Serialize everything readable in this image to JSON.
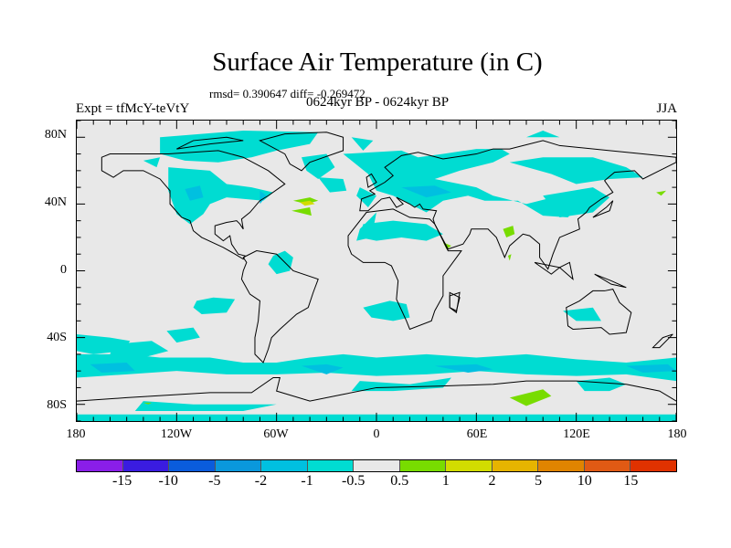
{
  "title": "Surface Air Temperature (in C)",
  "stats": "rmsd= 0.390647 diff= -0.269472",
  "period": "0624kyr BP - 0624kyr BP",
  "experiment": "Expt = tfMcY-teVtY",
  "season": "JJA",
  "lat_labels": [
    "80N",
    "40N",
    "0",
    "40S",
    "80S"
  ],
  "lon_labels": [
    "180",
    "120W",
    "60W",
    "0",
    "60E",
    "120E",
    "180"
  ],
  "colorbar": {
    "colors": [
      "#8a1ee8",
      "#3a1ce0",
      "#0a5cdc",
      "#0a98dc",
      "#00c0e0",
      "#00dcd2",
      "#e8e8e8",
      "#78dc00",
      "#d2dc00",
      "#e6b400",
      "#e08400",
      "#e05a14",
      "#e03200"
    ],
    "labels": [
      "-15",
      "-10",
      "-5",
      "-2",
      "-1",
      "-0.5",
      "0.5",
      "1",
      "2",
      "5",
      "10",
      "15"
    ]
  },
  "colors": {
    "background": "#e8e8e8",
    "coast": "#000000"
  }
}
